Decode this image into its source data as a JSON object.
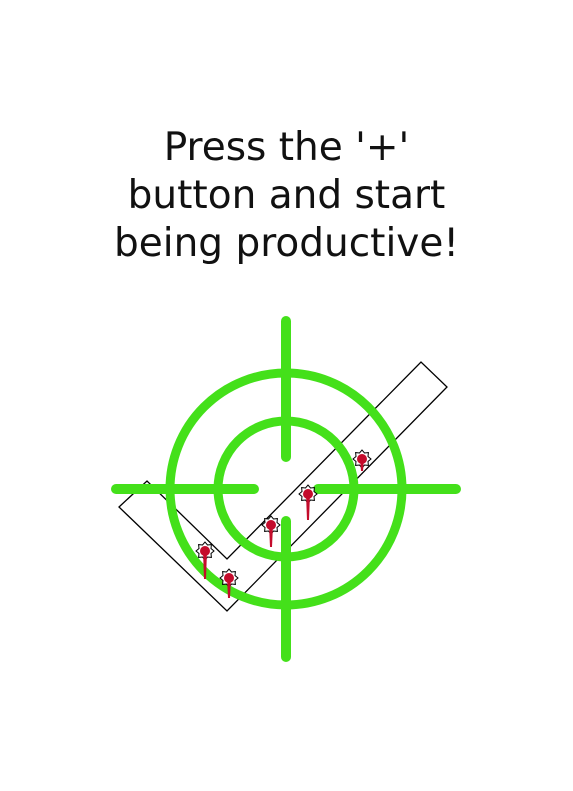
{
  "empty_state": {
    "message_lines": [
      "Press the '+'",
      "button and start",
      "being productive!"
    ],
    "illustration": {
      "icons": [
        "checkmark-icon",
        "crosshair-icon",
        "bullet-hole-icon"
      ],
      "bullet_hole_count": 5
    }
  },
  "colors": {
    "background": "#ffffff",
    "text": "#111111",
    "crosshair": "#44e01a",
    "blood": "#c40c2c",
    "checkmark_outline": "#000000"
  }
}
